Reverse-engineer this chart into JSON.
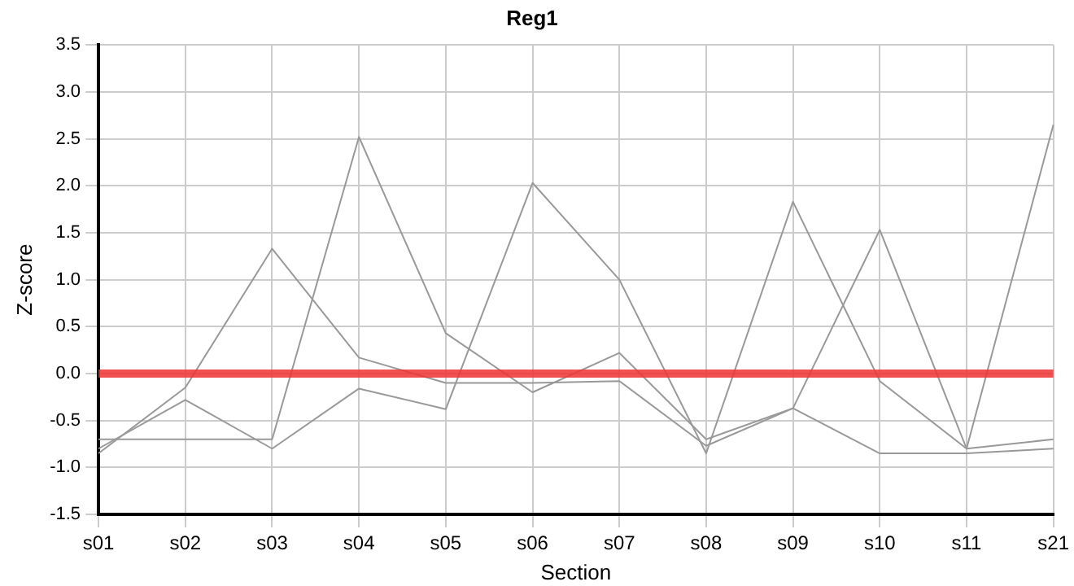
{
  "chart_data": {
    "type": "line",
    "title": "Reg1",
    "xlabel": "Section",
    "ylabel": "Z-score",
    "categories": [
      "s01",
      "s02",
      "s03",
      "s04",
      "s05",
      "s06",
      "s07",
      "s08",
      "s09",
      "s10",
      "s11",
      "s21"
    ],
    "series": [
      {
        "color": "#999999",
        "values": [
          -0.7,
          -0.7,
          -0.7,
          2.52,
          0.43,
          -0.2,
          0.22,
          -0.7,
          -0.37,
          1.53,
          -0.8,
          -0.7
        ]
      },
      {
        "color": "#999999",
        "values": [
          -0.8,
          -0.28,
          -0.8,
          -0.16,
          -0.38,
          2.03,
          1.0,
          -0.85,
          1.83,
          -0.08,
          -0.8,
          2.65
        ]
      },
      {
        "color": "#999999",
        "values": [
          -0.85,
          -0.15,
          1.33,
          0.17,
          -0.1,
          -0.1,
          -0.08,
          -0.77,
          -0.37,
          -0.85,
          -0.85,
          -0.8
        ]
      }
    ],
    "ylim": [
      -1.5,
      3.5
    ],
    "yticks": [
      {
        "value": -1.5,
        "label": "-1.5"
      },
      {
        "value": -1,
        "label": "-1.0"
      },
      {
        "value": -0.5,
        "label": "-0.5"
      },
      {
        "value": 0,
        "label": "0.0"
      },
      {
        "value": 0.5,
        "label": "0.5"
      },
      {
        "value": 1,
        "label": "1.0"
      },
      {
        "value": 1.5,
        "label": "1.5"
      },
      {
        "value": 2,
        "label": "2.0"
      },
      {
        "value": 2.5,
        "label": "2.5"
      },
      {
        "value": 3,
        "label": "3.0"
      },
      {
        "value": 3.5,
        "label": "3.5"
      }
    ],
    "ref_lines": [
      {
        "axis": "y",
        "value": 0,
        "color": "#ee3333"
      }
    ],
    "grid": true,
    "legend": false,
    "marker": "none",
    "line_style": "solid"
  }
}
